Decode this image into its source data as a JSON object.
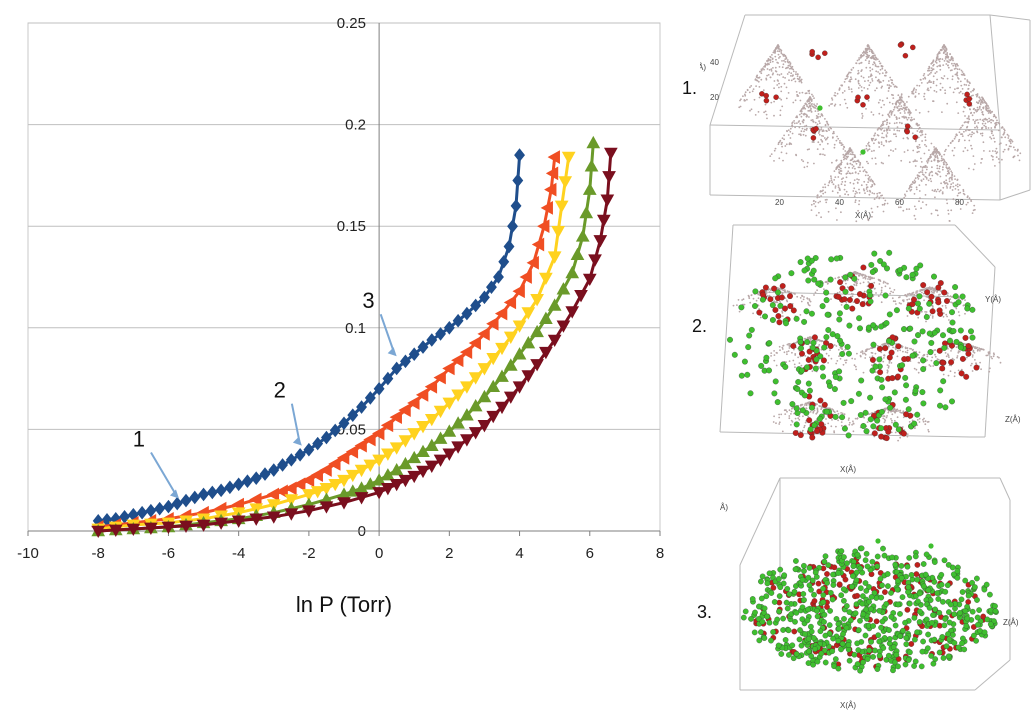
{
  "chart_data": {
    "type": "line",
    "xlabel": "ln P (Torr)",
    "ylabel": "",
    "xlim": [
      -10,
      8
    ],
    "ylim": [
      0,
      0.25
    ],
    "xticks": [
      "-10",
      "-8",
      "-6",
      "-4",
      "-2",
      "0",
      "2",
      "4",
      "6",
      "8"
    ],
    "yticks": [
      "0",
      "0.05",
      "0.1",
      "0.15",
      "0.2",
      "0.25"
    ],
    "grid": "horizontal",
    "series": [
      {
        "color": "#1f4e8c",
        "marker": "diamond",
        "x": [
          -8.0,
          -7.5,
          -7.0,
          -6.5,
          -6.0,
          -5.5,
          -5.0,
          -4.5,
          -4.0,
          -3.5,
          -3.0,
          -2.5,
          -2.0,
          -1.5,
          -1.0,
          -0.5,
          0.0,
          0.5,
          1.0,
          1.5,
          2.0,
          2.5,
          3.0,
          3.4,
          3.7,
          3.9,
          4.0
        ],
        "y": [
          0.005,
          0.006,
          0.008,
          0.01,
          0.012,
          0.015,
          0.018,
          0.02,
          0.023,
          0.026,
          0.03,
          0.035,
          0.04,
          0.046,
          0.053,
          0.061,
          0.07,
          0.08,
          0.087,
          0.094,
          0.1,
          0.107,
          0.115,
          0.125,
          0.14,
          0.16,
          0.185
        ]
      },
      {
        "color": "#f04e23",
        "marker": "triangle-left",
        "x": [
          -8.0,
          -7.0,
          -6.0,
          -5.0,
          -4.0,
          -3.0,
          -2.5,
          -2.0,
          -1.5,
          -1.0,
          -0.5,
          0.0,
          0.5,
          1.0,
          1.5,
          2.0,
          2.5,
          3.0,
          3.5,
          4.0,
          4.4,
          4.7,
          4.9,
          5.0
        ],
        "y": [
          0.002,
          0.004,
          0.006,
          0.009,
          0.013,
          0.018,
          0.021,
          0.025,
          0.03,
          0.036,
          0.042,
          0.048,
          0.056,
          0.063,
          0.071,
          0.08,
          0.088,
          0.097,
          0.107,
          0.118,
          0.132,
          0.15,
          0.168,
          0.184
        ]
      },
      {
        "color": "#ffd21f",
        "marker": "triangle-down",
        "x": [
          -8.0,
          -7.0,
          -6.0,
          -5.0,
          -4.0,
          -3.0,
          -2.0,
          -1.5,
          -1.0,
          -0.5,
          0.0,
          0.5,
          1.0,
          1.5,
          2.0,
          2.5,
          3.0,
          3.5,
          4.0,
          4.5,
          5.0,
          5.2,
          5.4
        ],
        "y": [
          0.001,
          0.003,
          0.004,
          0.006,
          0.009,
          0.013,
          0.018,
          0.021,
          0.025,
          0.03,
          0.035,
          0.041,
          0.048,
          0.055,
          0.063,
          0.071,
          0.08,
          0.09,
          0.101,
          0.114,
          0.135,
          0.16,
          0.184
        ]
      },
      {
        "color": "#6a9a2a",
        "marker": "triangle-up",
        "x": [
          -8.0,
          -7.0,
          -6.0,
          -5.0,
          -4.0,
          -3.0,
          -2.0,
          -1.0,
          -0.5,
          0.0,
          0.5,
          1.0,
          1.5,
          2.0,
          2.5,
          3.0,
          3.5,
          4.0,
          4.5,
          5.0,
          5.5,
          5.8,
          6.0,
          6.1
        ],
        "y": [
          0.0,
          0.001,
          0.002,
          0.004,
          0.006,
          0.009,
          0.013,
          0.018,
          0.021,
          0.025,
          0.03,
          0.036,
          0.042,
          0.049,
          0.057,
          0.066,
          0.076,
          0.087,
          0.098,
          0.111,
          0.127,
          0.145,
          0.168,
          0.191
        ]
      },
      {
        "color": "#7a0f1e",
        "marker": "triangle-down",
        "x": [
          -8.0,
          -7.0,
          -6.0,
          -5.0,
          -4.0,
          -3.0,
          -2.0,
          -1.0,
          0.0,
          0.5,
          1.0,
          1.5,
          2.0,
          2.5,
          3.0,
          3.5,
          4.0,
          4.5,
          5.0,
          5.5,
          6.0,
          6.3,
          6.5,
          6.6
        ],
        "y": [
          0.0,
          0.001,
          0.002,
          0.003,
          0.005,
          0.007,
          0.01,
          0.014,
          0.019,
          0.023,
          0.027,
          0.032,
          0.038,
          0.045,
          0.052,
          0.061,
          0.071,
          0.082,
          0.094,
          0.108,
          0.124,
          0.143,
          0.163,
          0.186
        ]
      }
    ],
    "annotations": [
      {
        "text": "1",
        "x": -5.7,
        "y": 0.016
      },
      {
        "text": "2",
        "x": -2.2,
        "y": 0.042
      },
      {
        "text": "3",
        "x": 0.5,
        "y": 0.086
      }
    ]
  },
  "panels": [
    {
      "label": "1.",
      "axis_texts": [
        "Y(Å)",
        "X(Å)",
        "40",
        "20",
        "20",
        "40",
        "60",
        "80"
      ]
    },
    {
      "label": "2.",
      "axis_texts": [
        "Y(Å)",
        "Z(Å)",
        "X(Å)"
      ]
    },
    {
      "label": "3.",
      "axis_texts": [
        "Y(Å)",
        "Z(Å)",
        "X(Å)"
      ]
    }
  ]
}
